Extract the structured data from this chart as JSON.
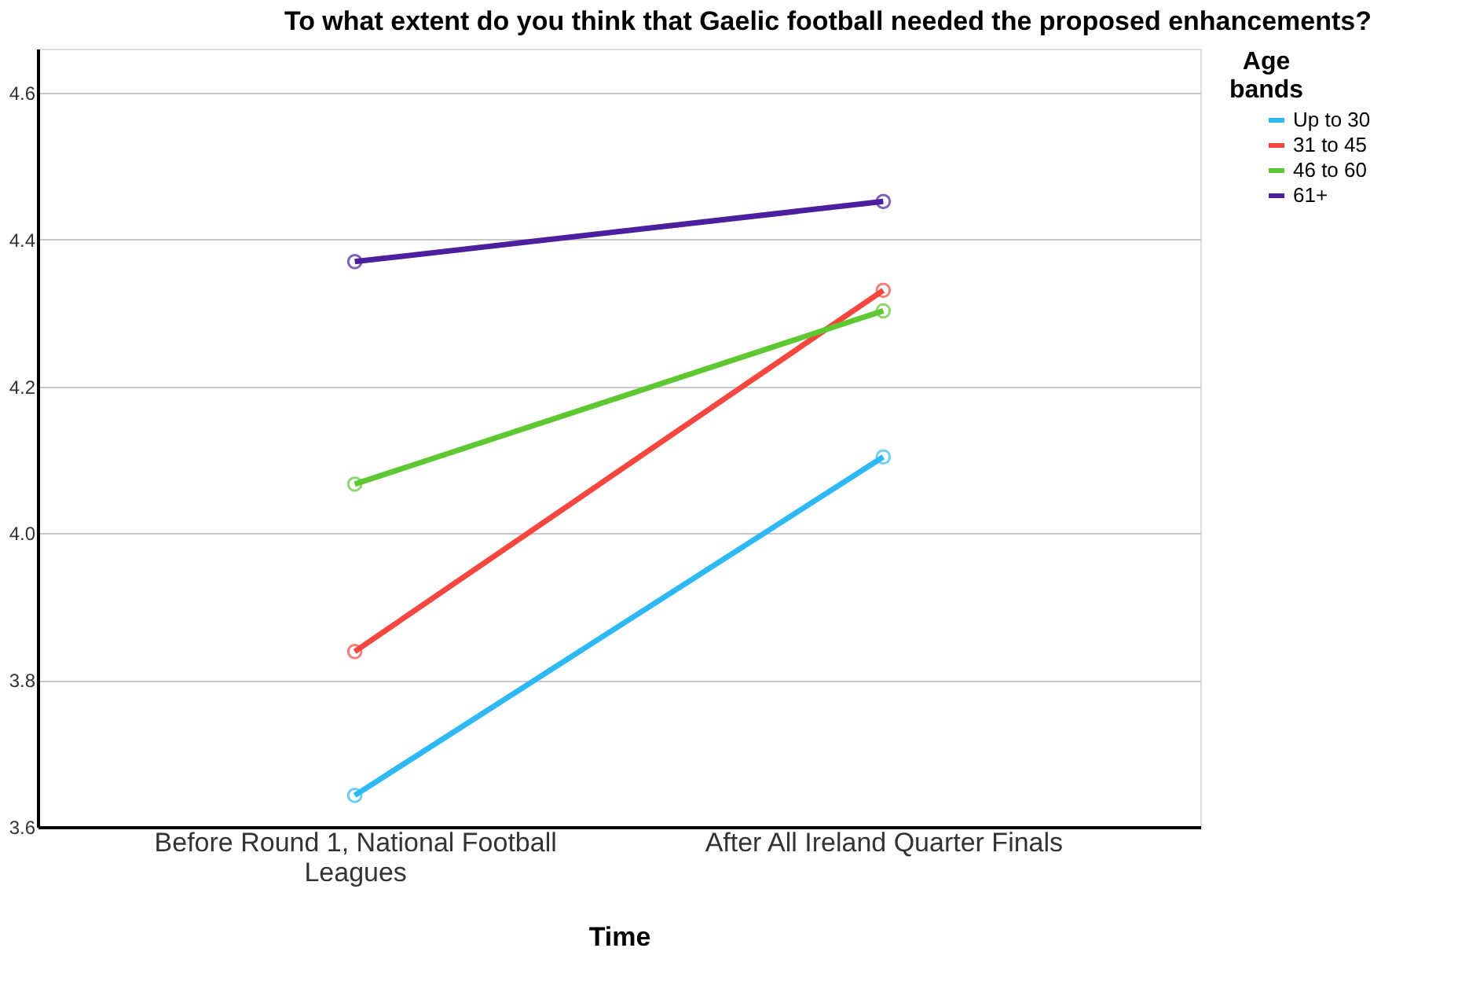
{
  "chart_data": {
    "type": "line",
    "title": "To what extent do you think that Gaelic football needed the proposed enhancements?",
    "xlabel": "Time",
    "legend_title": "Age bands",
    "categories": [
      "Before Round 1, National Football Leagues",
      "After All Ireland Quarter Finals"
    ],
    "series": [
      {
        "name": "Up to 30",
        "color": "#2eb8f5",
        "values": [
          3.643,
          4.104
        ]
      },
      {
        "name": "31 to 45",
        "color": "#f5473f",
        "values": [
          3.839,
          4.331
        ]
      },
      {
        "name": "46 to 60",
        "color": "#5ec832",
        "values": [
          4.067,
          4.303
        ]
      },
      {
        "name": "61+",
        "color": "#4b1f9e",
        "values": [
          4.37,
          4.452
        ]
      }
    ],
    "ylim": [
      3.6,
      4.66
    ],
    "yticks": [
      3.6,
      3.8,
      {
        "value": 4,
        "label": "4.0"
      },
      4.2,
      4.4,
      4.6
    ],
    "grid": "y",
    "legend": "top right",
    "marker": "circle",
    "line_style": "solid"
  }
}
